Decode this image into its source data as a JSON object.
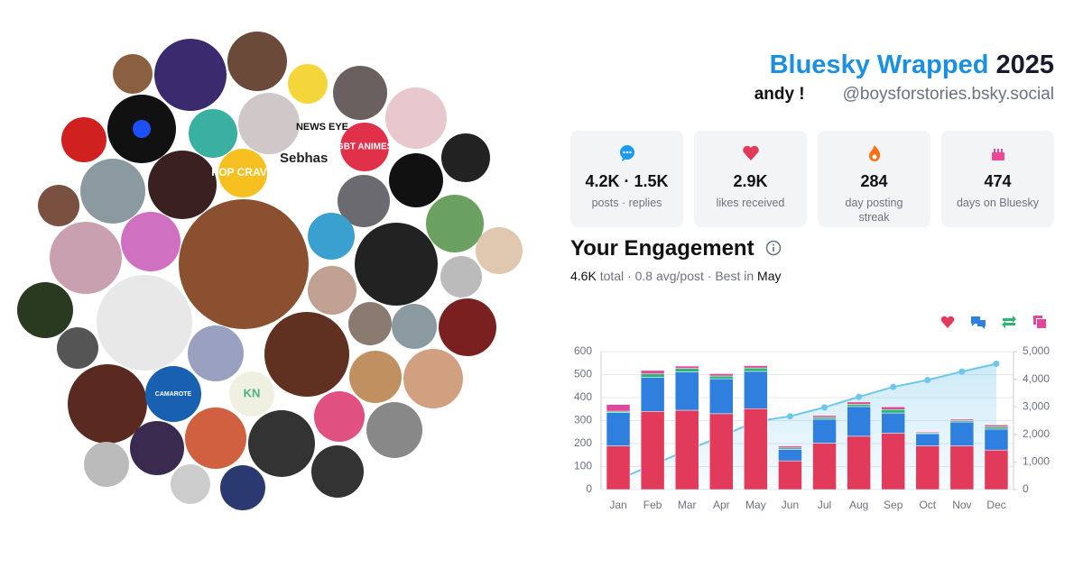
{
  "header": {
    "title": "Bluesky Wrapped",
    "year": "2025",
    "name": "andy !",
    "handle": "@boysforstories.bsky.social"
  },
  "avatar_texts": [
    "NEWS EYE",
    "LGBT ANIMES+",
    "POP CRAVE",
    "Sebhas",
    "KN",
    "CAMAROTE"
  ],
  "stats": [
    {
      "value": "4.2K · 1.5K",
      "label": "posts · replies"
    },
    {
      "value": "2.9K",
      "label": "likes received"
    },
    {
      "value": "284",
      "label": "day posting streak"
    },
    {
      "value": "474",
      "label": "days on Bluesky"
    }
  ],
  "engagement": {
    "title": "Your Engagement",
    "summary": [
      "4.6K",
      " total · ",
      "0.8",
      " avg/post · Best in ",
      "May"
    ]
  },
  "chart_data": {
    "type": "bar",
    "stacked": true,
    "grid": true,
    "categories": [
      "Jan",
      "Feb",
      "Mar",
      "Apr",
      "May",
      "Jun",
      "Jul",
      "Aug",
      "Sep",
      "Oct",
      "Nov",
      "Dec"
    ],
    "ylim": [
      0,
      600
    ],
    "yticks": [
      0,
      100,
      200,
      300,
      400,
      500,
      600
    ],
    "y2lim": [
      0,
      5000
    ],
    "y2ticks": [
      0,
      {
        "value": 1000,
        "label": "1,000"
      },
      {
        "value": 2000,
        "label": "2,000"
      },
      {
        "value": 3000,
        "label": "3,000"
      },
      {
        "value": 4000,
        "label": "4,000"
      },
      {
        "value": 5000,
        "label": "5,000"
      }
    ],
    "series": [
      {
        "color": "#e23a5a",
        "values": [
          190,
          340,
          345,
          330,
          352,
          125,
          202,
          232,
          245,
          190,
          190,
          172
        ]
      },
      {
        "color": "#2f7fde",
        "values": [
          145,
          148,
          167,
          152,
          162,
          50,
          104,
          129,
          88,
          53,
          104,
          91
        ]
      },
      {
        "color": "#2bb673",
        "values": [
          6,
          15,
          15,
          12,
          15,
          6,
          8,
          10,
          15,
          4,
          6,
          10
        ]
      },
      {
        "color": "#e0489c",
        "values": [
          29,
          15,
          10,
          10,
          10,
          8,
          8,
          10,
          12,
          4,
          6,
          8
        ]
      },
      {
        "type": "line",
        "axis": "y2",
        "color": "#6ec6ea",
        "values": [
          370,
          888,
          1425,
          1929,
          2468,
          2657,
          2979,
          3360,
          3720,
          3971,
          4277,
          4558
        ]
      }
    ]
  }
}
